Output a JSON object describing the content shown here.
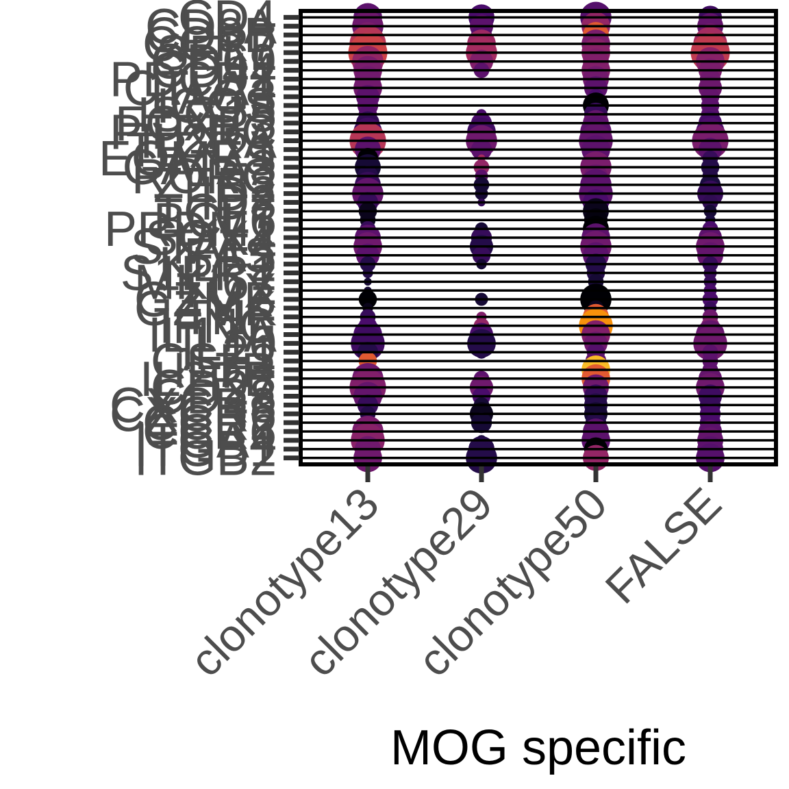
{
  "chart_data": {
    "type": "scatter",
    "title": "",
    "xlabel": "MOG specific",
    "ylabel": "",
    "categories": [
      "clonotype13",
      "clonotype29",
      "clonotype50",
      "FALSE"
    ],
    "genes": [
      "CD4",
      "CD8A",
      "CD8B",
      "CCR7",
      "SELL",
      "CD69",
      "CD44",
      "PDCD1",
      "CTLA4",
      "LAG3",
      "ICOS",
      "ISG15",
      "FOXP3",
      "PTPRC",
      "IL2RA",
      "TBX21",
      "EOMES",
      "GATA3",
      "RORC",
      "ZEB2",
      "ID2",
      "ID3",
      "TCF7",
      "BCL6",
      "PRDM1",
      "SOX4",
      "STAT4",
      "FAS",
      "KLF2",
      "S1PR1",
      "MKI67",
      "TOX",
      "GZMB",
      "GZMK",
      "TNF",
      "IFNG",
      "IL17A",
      "IL10",
      "IL21",
      "CSF2",
      "IL7R",
      "IL2RB",
      "CD27",
      "CD28",
      "CXCR3",
      "CXCR6",
      "CCR2",
      "CCR6",
      "ITGA4",
      "ITGB1",
      "ITGB2"
    ],
    "grid": true,
    "legend": "none",
    "palette": [
      "#000004",
      "#1b0c41",
      "#4a0c6b",
      "#781c6d",
      "#a52c60",
      "#cf4446",
      "#ed6925",
      "#fb9b06",
      "#f7d13d"
    ],
    "points": [
      [
        0,
        0,
        0.55,
        0.3
      ],
      [
        1,
        0,
        0.5,
        0.25
      ],
      [
        2,
        0,
        0.6,
        0.28
      ],
      [
        3,
        0,
        0.45,
        0.22
      ],
      [
        0,
        1,
        0.6,
        0.35
      ],
      [
        1,
        1,
        0.45,
        0.3
      ],
      [
        2,
        1,
        0.55,
        0.45
      ],
      [
        3,
        1,
        0.5,
        0.32
      ],
      [
        0,
        2,
        0.5,
        0.38
      ],
      [
        1,
        2,
        0.4,
        0.28
      ],
      [
        2,
        2,
        0.5,
        0.7
      ],
      [
        3,
        2,
        0.45,
        0.36
      ],
      [
        0,
        3,
        0.7,
        0.55
      ],
      [
        1,
        3,
        0.55,
        0.48
      ],
      [
        2,
        3,
        0.55,
        0.38
      ],
      [
        3,
        3,
        0.65,
        0.5
      ],
      [
        0,
        4,
        0.75,
        0.62
      ],
      [
        1,
        4,
        0.6,
        0.5
      ],
      [
        2,
        4,
        0.55,
        0.42
      ],
      [
        3,
        4,
        0.75,
        0.58
      ],
      [
        0,
        5,
        0.6,
        0.45
      ],
      [
        1,
        5,
        0.45,
        0.4
      ],
      [
        2,
        5,
        0.5,
        0.4
      ],
      [
        3,
        5,
        0.55,
        0.42
      ],
      [
        0,
        6,
        0.55,
        0.38
      ],
      [
        1,
        6,
        0.3,
        0.3
      ],
      [
        2,
        6,
        0.55,
        0.4
      ],
      [
        3,
        6,
        0.45,
        0.38
      ],
      [
        0,
        7,
        0.5,
        0.36
      ],
      [
        1,
        7,
        0.0,
        0.0
      ],
      [
        2,
        7,
        0.5,
        0.36
      ],
      [
        3,
        7,
        0.4,
        0.35
      ],
      [
        0,
        8,
        0.55,
        0.36
      ],
      [
        1,
        8,
        0.0,
        0.0
      ],
      [
        2,
        8,
        0.45,
        0.3
      ],
      [
        3,
        8,
        0.45,
        0.34
      ],
      [
        0,
        9,
        0.45,
        0.3
      ],
      [
        1,
        9,
        0.0,
        0.0
      ],
      [
        2,
        9,
        0.3,
        0.25
      ],
      [
        3,
        9,
        0.35,
        0.32
      ],
      [
        0,
        10,
        0.4,
        0.3
      ],
      [
        1,
        10,
        0.0,
        0.0
      ],
      [
        2,
        10,
        0.5,
        0.0
      ],
      [
        3,
        10,
        0.35,
        0.3
      ],
      [
        0,
        11,
        0.35,
        0.28
      ],
      [
        1,
        11,
        0.2,
        0.25
      ],
      [
        2,
        11,
        0.45,
        0.2
      ],
      [
        3,
        11,
        0.35,
        0.28
      ],
      [
        0,
        12,
        0.45,
        0.18
      ],
      [
        1,
        12,
        0.4,
        0.25
      ],
      [
        2,
        12,
        0.5,
        0.32
      ],
      [
        3,
        12,
        0.45,
        0.24
      ],
      [
        0,
        13,
        0.55,
        0.22
      ],
      [
        1,
        13,
        0.55,
        0.22
      ],
      [
        2,
        13,
        0.6,
        0.3
      ],
      [
        3,
        13,
        0.55,
        0.26
      ],
      [
        0,
        14,
        0.7,
        0.55
      ],
      [
        1,
        14,
        0.6,
        0.35
      ],
      [
        2,
        14,
        0.65,
        0.32
      ],
      [
        3,
        14,
        0.7,
        0.38
      ],
      [
        0,
        15,
        0.5,
        0.3
      ],
      [
        1,
        15,
        0.4,
        0.3
      ],
      [
        2,
        15,
        0.55,
        0.3
      ],
      [
        3,
        15,
        0.45,
        0.3
      ],
      [
        0,
        16,
        0.4,
        0.0
      ],
      [
        1,
        16,
        0.15,
        0.5
      ],
      [
        2,
        16,
        0.45,
        0.3
      ],
      [
        3,
        16,
        0.3,
        0.2
      ],
      [
        0,
        17,
        0.5,
        0.1
      ],
      [
        1,
        17,
        0.3,
        0.45
      ],
      [
        2,
        17,
        0.6,
        0.38
      ],
      [
        3,
        17,
        0.35,
        0.15
      ],
      [
        0,
        18,
        0.4,
        0.15
      ],
      [
        1,
        18,
        0.25,
        0.3
      ],
      [
        2,
        18,
        0.45,
        0.35
      ],
      [
        3,
        18,
        0.3,
        0.15
      ],
      [
        0,
        19,
        0.5,
        0.2
      ],
      [
        1,
        19,
        0.3,
        0.1
      ],
      [
        2,
        19,
        0.6,
        0.3
      ],
      [
        3,
        19,
        0.4,
        0.12
      ],
      [
        0,
        20,
        0.6,
        0.32
      ],
      [
        1,
        20,
        0.25,
        0.1
      ],
      [
        2,
        20,
        0.65,
        0.3
      ],
      [
        3,
        20,
        0.5,
        0.2
      ],
      [
        0,
        21,
        0.4,
        0.2
      ],
      [
        1,
        21,
        0.15,
        0.2
      ],
      [
        2,
        21,
        0.5,
        0.25
      ],
      [
        3,
        21,
        0.3,
        0.18
      ],
      [
        0,
        22,
        0.35,
        0.05
      ],
      [
        1,
        22,
        0.0,
        0.0
      ],
      [
        2,
        22,
        0.5,
        0.05
      ],
      [
        3,
        22,
        0.25,
        0.1
      ],
      [
        0,
        23,
        0.3,
        0.05
      ],
      [
        1,
        23,
        0.0,
        0.0
      ],
      [
        2,
        23,
        0.45,
        0.02
      ],
      [
        3,
        23,
        0.2,
        0.12
      ],
      [
        0,
        24,
        0.3,
        0.2
      ],
      [
        1,
        24,
        0.25,
        0.1
      ],
      [
        2,
        24,
        0.5,
        0.0
      ],
      [
        3,
        24,
        0.3,
        0.25
      ],
      [
        0,
        25,
        0.5,
        0.3
      ],
      [
        1,
        25,
        0.4,
        0.2
      ],
      [
        2,
        25,
        0.55,
        0.3
      ],
      [
        3,
        25,
        0.45,
        0.3
      ],
      [
        0,
        26,
        0.55,
        0.35
      ],
      [
        1,
        26,
        0.45,
        0.15
      ],
      [
        2,
        26,
        0.6,
        0.35
      ],
      [
        3,
        26,
        0.55,
        0.35
      ],
      [
        0,
        27,
        0.45,
        0.3
      ],
      [
        1,
        27,
        0.35,
        0.2
      ],
      [
        2,
        27,
        0.5,
        0.3
      ],
      [
        3,
        27,
        0.5,
        0.32
      ],
      [
        0,
        28,
        0.3,
        0.15
      ],
      [
        1,
        28,
        0.2,
        0.1
      ],
      [
        2,
        28,
        0.4,
        0.15
      ],
      [
        3,
        28,
        0.3,
        0.2
      ],
      [
        0,
        29,
        0.2,
        0.15
      ],
      [
        1,
        29,
        0.0,
        0.0
      ],
      [
        2,
        29,
        0.35,
        0.15
      ],
      [
        3,
        29,
        0.25,
        0.2
      ],
      [
        0,
        30,
        0.15,
        0.1
      ],
      [
        1,
        30,
        0.0,
        0.0
      ],
      [
        2,
        30,
        0.3,
        0.1
      ],
      [
        3,
        30,
        0.25,
        0.2
      ],
      [
        0,
        31,
        0.15,
        0.1
      ],
      [
        1,
        31,
        0.0,
        0.0
      ],
      [
        2,
        31,
        0.2,
        0.1
      ],
      [
        3,
        31,
        0.25,
        0.25
      ],
      [
        0,
        32,
        0.35,
        0.0
      ],
      [
        1,
        32,
        0.25,
        0.1
      ],
      [
        2,
        32,
        0.6,
        0.0
      ],
      [
        3,
        32,
        0.3,
        0.25
      ],
      [
        0,
        33,
        0.2,
        0.05
      ],
      [
        1,
        33,
        0.0,
        0.0
      ],
      [
        2,
        33,
        0.3,
        0.05
      ],
      [
        3,
        33,
        0.25,
        0.2
      ],
      [
        0,
        34,
        0.3,
        0.2
      ],
      [
        1,
        34,
        0.2,
        0.4
      ],
      [
        2,
        34,
        0.5,
        0.7
      ],
      [
        3,
        34,
        0.3,
        0.35
      ],
      [
        0,
        35,
        0.35,
        0.25
      ],
      [
        1,
        35,
        0.3,
        0.45
      ],
      [
        2,
        35,
        0.65,
        0.85
      ],
      [
        3,
        35,
        0.35,
        0.4
      ],
      [
        0,
        36,
        0.55,
        0.25
      ],
      [
        1,
        36,
        0.45,
        0.25
      ],
      [
        2,
        36,
        0.55,
        0.4
      ],
      [
        3,
        36,
        0.55,
        0.32
      ],
      [
        0,
        37,
        0.65,
        0.22
      ],
      [
        1,
        37,
        0.55,
        0.15
      ],
      [
        2,
        37,
        0.45,
        0.35
      ],
      [
        3,
        37,
        0.65,
        0.35
      ],
      [
        0,
        38,
        0.4,
        0.15
      ],
      [
        1,
        38,
        0.25,
        0.15
      ],
      [
        2,
        38,
        0.35,
        0.28
      ],
      [
        3,
        38,
        0.3,
        0.3
      ],
      [
        0,
        39,
        0.35,
        0.7
      ],
      [
        1,
        39,
        0.0,
        0.0
      ],
      [
        2,
        39,
        0.4,
        0.3
      ],
      [
        3,
        39,
        0.3,
        0.3
      ],
      [
        0,
        40,
        0.3,
        0.75
      ],
      [
        1,
        40,
        0.0,
        0.0
      ],
      [
        2,
        40,
        0.55,
        0.95
      ],
      [
        3,
        40,
        0.3,
        0.3
      ],
      [
        0,
        41,
        0.6,
        0.35
      ],
      [
        1,
        41,
        0.3,
        0.3
      ],
      [
        2,
        41,
        0.55,
        0.7
      ],
      [
        3,
        41,
        0.45,
        0.32
      ],
      [
        0,
        42,
        0.7,
        0.4
      ],
      [
        1,
        42,
        0.45,
        0.35
      ],
      [
        2,
        42,
        0.5,
        0.35
      ],
      [
        3,
        42,
        0.55,
        0.35
      ],
      [
        0,
        43,
        0.55,
        0.32
      ],
      [
        1,
        43,
        0.35,
        0.25
      ],
      [
        2,
        43,
        0.45,
        0.2
      ],
      [
        3,
        43,
        0.45,
        0.22
      ],
      [
        0,
        44,
        0.4,
        0.2
      ],
      [
        1,
        44,
        0.3,
        0.1
      ],
      [
        2,
        44,
        0.45,
        0.15
      ],
      [
        3,
        44,
        0.4,
        0.2
      ],
      [
        0,
        45,
        0.3,
        0.15
      ],
      [
        1,
        45,
        0.45,
        0.05
      ],
      [
        2,
        45,
        0.45,
        0.1
      ],
      [
        3,
        45,
        0.4,
        0.25
      ],
      [
        0,
        46,
        0.2,
        0.1
      ],
      [
        1,
        46,
        0.4,
        0.1
      ],
      [
        2,
        46,
        0.4,
        0.15
      ],
      [
        3,
        46,
        0.4,
        0.25
      ],
      [
        0,
        47,
        0.6,
        0.38
      ],
      [
        1,
        47,
        0.0,
        0.0
      ],
      [
        2,
        47,
        0.5,
        0.3
      ],
      [
        3,
        47,
        0.45,
        0.3
      ],
      [
        0,
        48,
        0.65,
        0.42
      ],
      [
        1,
        48,
        0.2,
        0.1
      ],
      [
        2,
        48,
        0.55,
        0.3
      ],
      [
        3,
        48,
        0.5,
        0.32
      ],
      [
        0,
        49,
        0.5,
        0.35
      ],
      [
        1,
        49,
        0.5,
        0.15
      ],
      [
        2,
        49,
        0.45,
        0.0
      ],
      [
        3,
        49,
        0.5,
        0.3
      ],
      [
        0,
        50,
        0.55,
        0.35
      ],
      [
        1,
        50,
        0.6,
        0.15
      ],
      [
        2,
        50,
        0.5,
        0.45
      ],
      [
        3,
        50,
        0.55,
        0.28
      ]
    ]
  }
}
